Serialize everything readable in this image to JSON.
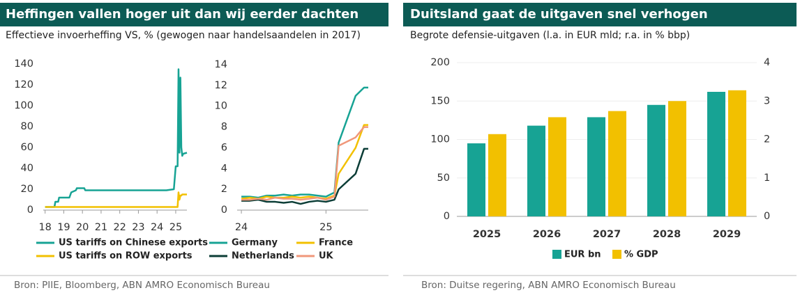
{
  "panels": [
    {
      "title": "Heffingen vallen hoger uit dan wij eerder dachten",
      "subtitle": "Effectieve invoerheffing VS, % (gewogen naar handelsaandelen in 2017)",
      "source": "Bron: PIIE, Bloomberg, ABN AMRO Economisch Bureau"
    },
    {
      "title": "Duitsland gaat de uitgaven snel verhogen",
      "subtitle": "Begrote defensie-uitgaven (l.a. in EUR mld; r.a. in % bbp)",
      "source": "Bron: Duitse regering, ABN AMRO Economisch Bureau"
    }
  ],
  "chart_data": [
    {
      "type": "line",
      "x": [
        18,
        18.5,
        18.55,
        18.7,
        18.75,
        19.3,
        19.4,
        19.65,
        19.7,
        20.1,
        20.15,
        24.5,
        24.9,
        25.0,
        25.1,
        25.15,
        25.2,
        25.25,
        25.3,
        25.35,
        25.4,
        25.6
      ],
      "series": [
        {
          "name": "US tariffs on Chinese exports",
          "color": "#17a394",
          "values": [
            3,
            3,
            8,
            8,
            12,
            12,
            17,
            19,
            21,
            21,
            19,
            19,
            20,
            42,
            42,
            135,
            55,
            127,
            60,
            52,
            54,
            55
          ]
        },
        {
          "name": "US tariffs on ROW exports",
          "color": "#f2c000",
          "values": [
            3,
            3,
            3,
            3,
            3,
            3,
            3,
            3,
            3,
            3,
            3,
            3,
            3,
            3,
            3,
            17,
            10,
            14,
            14,
            15,
            15,
            15
          ]
        }
      ],
      "xlim": [
        17.9,
        25.6
      ],
      "xticks": [
        18,
        19,
        20,
        21,
        22,
        23,
        24,
        25
      ],
      "ylim": [
        0,
        140
      ],
      "yticks": [
        0,
        20,
        40,
        60,
        80,
        100,
        120,
        140
      ],
      "legend": "bottom"
    },
    {
      "type": "line",
      "x": [
        24,
        24.1,
        24.2,
        24.3,
        24.4,
        24.5,
        24.6,
        24.7,
        24.8,
        24.9,
        25.0,
        25.1,
        25.15,
        25.35,
        25.45,
        25.5
      ],
      "series": [
        {
          "name": "Germany",
          "color": "#17a394",
          "values": [
            1.3,
            1.3,
            1.2,
            1.4,
            1.4,
            1.5,
            1.4,
            1.5,
            1.5,
            1.4,
            1.3,
            1.7,
            6.5,
            11,
            11.8,
            11.8
          ]
        },
        {
          "name": "France",
          "color": "#f2c000",
          "values": [
            1.1,
            1.2,
            1.1,
            1.3,
            1.2,
            1.2,
            1.3,
            1.2,
            1.3,
            1.2,
            1.1,
            1.4,
            3.5,
            6,
            8.2,
            8.2
          ]
        },
        {
          "name": "Netherlands",
          "color": "#0b3d36",
          "values": [
            0.9,
            0.9,
            1.0,
            0.8,
            0.8,
            0.7,
            0.8,
            0.6,
            0.8,
            0.9,
            0.8,
            1.0,
            2,
            3.5,
            5.9,
            5.9
          ]
        },
        {
          "name": "UK",
          "color": "#f0977a",
          "values": [
            1.0,
            1.0,
            1.1,
            1.0,
            1.2,
            1.1,
            1.1,
            1.0,
            1.1,
            1.2,
            1.0,
            1.3,
            6.2,
            7,
            8,
            8
          ]
        }
      ],
      "xlim": [
        23.95,
        25.5
      ],
      "xticks": [
        24,
        25
      ],
      "ylim": [
        0,
        14
      ],
      "yticks": [
        0,
        2,
        4,
        6,
        8,
        10,
        12,
        14
      ],
      "legend": "bottom"
    },
    {
      "type": "bar",
      "categories": [
        "2025",
        "2026",
        "2027",
        "2028",
        "2029"
      ],
      "series": [
        {
          "name": "EUR bn",
          "color": "#17a394",
          "values": [
            95,
            118,
            129,
            145,
            162
          ]
        },
        {
          "name": "% GDP",
          "color": "#f2c000",
          "axis": "y2",
          "values": [
            2.14,
            2.58,
            2.74,
            3.0,
            3.28
          ]
        }
      ],
      "ylim": [
        0,
        200
      ],
      "yticks": [
        0,
        50,
        100,
        150,
        200
      ],
      "y2lim": [
        0,
        4
      ],
      "y2ticks": [
        0,
        1,
        2,
        3,
        4
      ],
      "grid": true,
      "legend": "bottom"
    }
  ]
}
